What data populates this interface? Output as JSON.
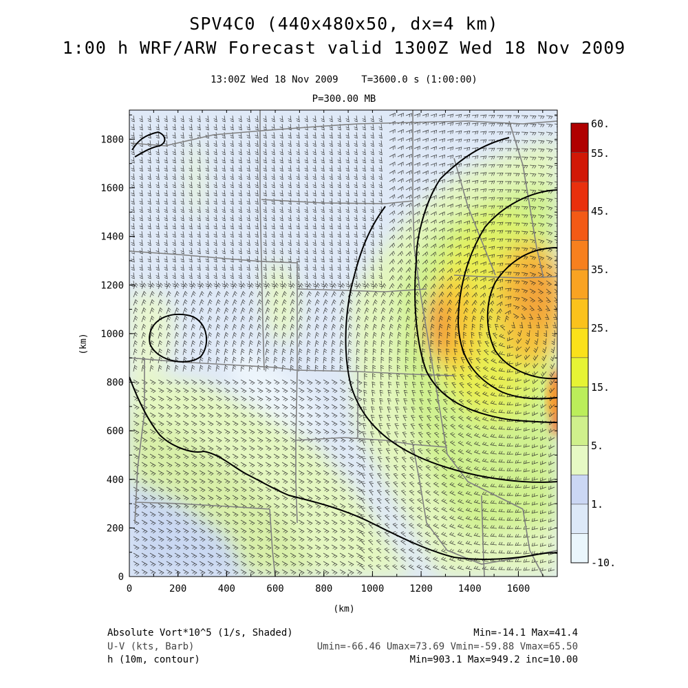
{
  "header": {
    "title_line1": "SPV4C0 (440x480x50, dx=4 km)",
    "title_line2": "1:00 h WRF/ARW Forecast valid 1300Z Wed 18 Nov 2009",
    "valid_time": "13:00Z Wed 18 Nov 2009",
    "elapsed": "T=3600.0 s (1:00:00)",
    "pressure_level": "P=300.00 MB"
  },
  "axes": {
    "x_ticks": [
      "0",
      "200",
      "400",
      "600",
      "800",
      "1000",
      "1200",
      "1400",
      "1600"
    ],
    "y_ticks": [
      "0",
      "200",
      "400",
      "600",
      "800",
      "1000",
      "1200",
      "1400",
      "1600",
      "1800"
    ],
    "x_label": "(km)",
    "y_label": "(km)",
    "x_range_km": [
      0,
      1760
    ],
    "y_range_km": [
      0,
      1920
    ]
  },
  "colorbar": {
    "labels": [
      "60.",
      "55.",
      "45.",
      "35.",
      "25.",
      "15.",
      "5.",
      "1.",
      "-10."
    ],
    "colors_bottom_to_top": [
      "#eaf6fc",
      "#dde9f8",
      "#cbd7f4",
      "#e6f9c4",
      "#cff08c",
      "#bbee5a",
      "#e6f434",
      "#fbe11a",
      "#fbc21c",
      "#f9a322",
      "#f7801e",
      "#f35a16",
      "#e9300d",
      "#d11806",
      "#b00000"
    ]
  },
  "footer": {
    "line1_left": "Absolute Vort*10^5 (1/s, Shaded)",
    "line1_right": "Min=-14.1 Max=41.4",
    "line2_left": "U-V (kts, Barb)",
    "line2_right": "Umin=-66.46 Umax=73.69 Vmin=-59.88 Vmax=65.50",
    "line3_left": "h (10m, contour)",
    "line3_right": "Min=903.1 Max=949.2 inc=10.00"
  }
}
